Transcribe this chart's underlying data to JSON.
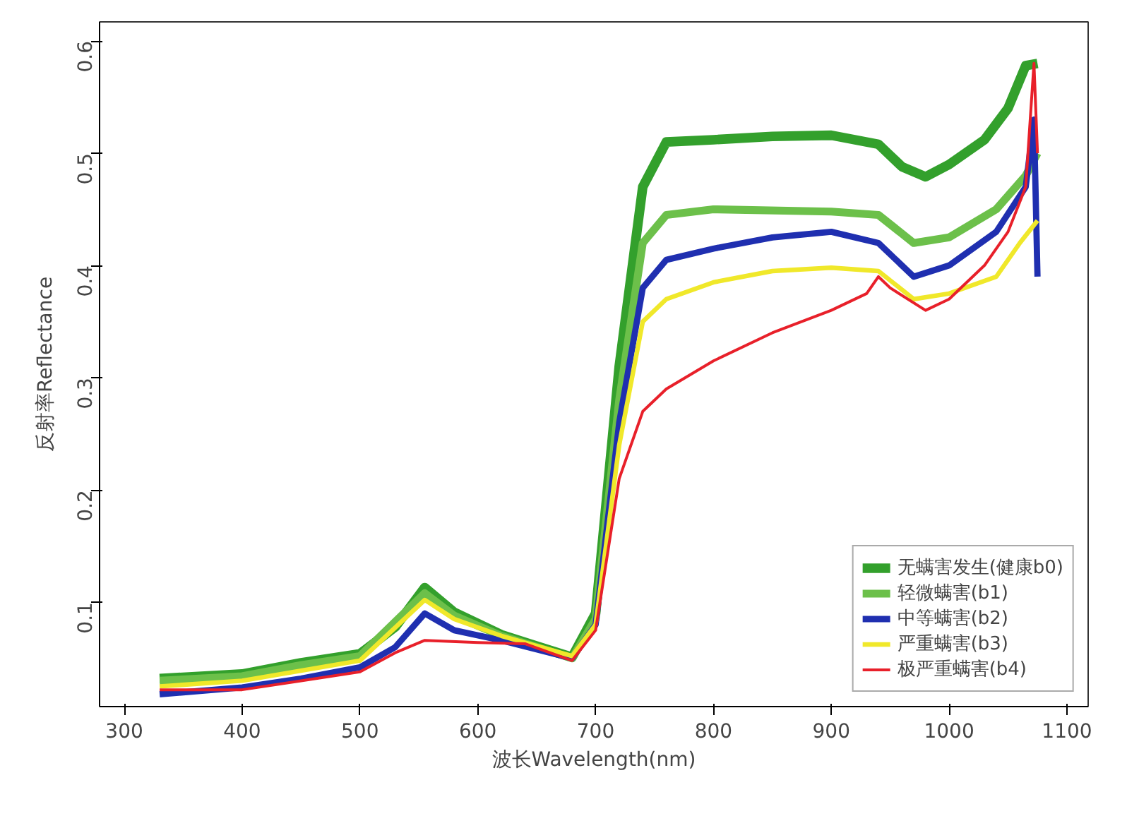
{
  "chart_data": {
    "type": "line",
    "xlabel": "波长Wavelength(nm)",
    "ylabel": "反射率Reflectance",
    "xlim": [
      279,
      1118
    ],
    "ylim": [
      0.007,
      0.617
    ],
    "xticks": [
      300,
      400,
      500,
      600,
      700,
      800,
      900,
      1000,
      1100
    ],
    "yticks": [
      0.1,
      0.2,
      0.3,
      0.4,
      0.5,
      0.6
    ],
    "grid": false,
    "legend": "bottom right",
    "line_style": "solid",
    "marker": "none",
    "series": [
      {
        "name": "无螨害发生(健康b0)",
        "color": "#33a02c",
        "x": [
          330,
          400,
          450,
          500,
          530,
          555,
          580,
          620,
          650,
          680,
          700,
          720,
          740,
          760,
          800,
          850,
          900,
          940,
          960,
          980,
          1000,
          1030,
          1050,
          1065,
          1075
        ],
        "values": [
          0.032,
          0.036,
          0.046,
          0.054,
          0.078,
          0.113,
          0.091,
          0.071,
          0.061,
          0.051,
          0.09,
          0.31,
          0.47,
          0.51,
          0.512,
          0.515,
          0.516,
          0.508,
          0.488,
          0.479,
          0.49,
          0.512,
          0.54,
          0.578,
          0.58
        ]
      },
      {
        "name": "轻微螨害(b1)",
        "color": "#6cc04a",
        "x": [
          330,
          400,
          450,
          500,
          555,
          580,
          620,
          680,
          700,
          720,
          740,
          760,
          800,
          900,
          940,
          970,
          1000,
          1040,
          1065,
          1075
        ],
        "values": [
          0.03,
          0.034,
          0.044,
          0.052,
          0.108,
          0.088,
          0.07,
          0.05,
          0.085,
          0.28,
          0.42,
          0.445,
          0.45,
          0.448,
          0.445,
          0.42,
          0.425,
          0.45,
          0.48,
          0.5
        ]
      },
      {
        "name": "中等螨害(b2)",
        "color": "#1f2fb0",
        "x": [
          330,
          400,
          450,
          500,
          530,
          555,
          580,
          620,
          680,
          700,
          720,
          740,
          760,
          800,
          850,
          900,
          940,
          970,
          1000,
          1040,
          1065,
          1072,
          1075
        ],
        "values": [
          0.018,
          0.024,
          0.032,
          0.042,
          0.06,
          0.09,
          0.075,
          0.066,
          0.05,
          0.08,
          0.26,
          0.38,
          0.405,
          0.415,
          0.425,
          0.43,
          0.42,
          0.39,
          0.4,
          0.43,
          0.47,
          0.53,
          0.39
        ]
      },
      {
        "name": "严重螨害(b3)",
        "color": "#f0e82a",
        "x": [
          330,
          400,
          500,
          555,
          580,
          620,
          680,
          700,
          720,
          740,
          760,
          800,
          850,
          900,
          940,
          970,
          1000,
          1040,
          1060,
          1075
        ],
        "values": [
          0.025,
          0.03,
          0.048,
          0.102,
          0.085,
          0.07,
          0.052,
          0.08,
          0.24,
          0.35,
          0.37,
          0.385,
          0.395,
          0.398,
          0.395,
          0.37,
          0.375,
          0.39,
          0.42,
          0.44
        ]
      },
      {
        "name": "极严重螨害(b4)",
        "color": "#e8202a",
        "x": [
          330,
          400,
          450,
          500,
          530,
          555,
          600,
          640,
          680,
          700,
          720,
          740,
          760,
          800,
          850,
          900,
          930,
          940,
          950,
          980,
          1000,
          1030,
          1050,
          1065,
          1072,
          1075
        ],
        "values": [
          0.022,
          0.022,
          0.03,
          0.038,
          0.055,
          0.066,
          0.064,
          0.063,
          0.048,
          0.075,
          0.21,
          0.27,
          0.29,
          0.315,
          0.34,
          0.36,
          0.375,
          0.39,
          0.38,
          0.36,
          0.37,
          0.4,
          0.43,
          0.47,
          0.58,
          0.5
        ]
      }
    ]
  }
}
